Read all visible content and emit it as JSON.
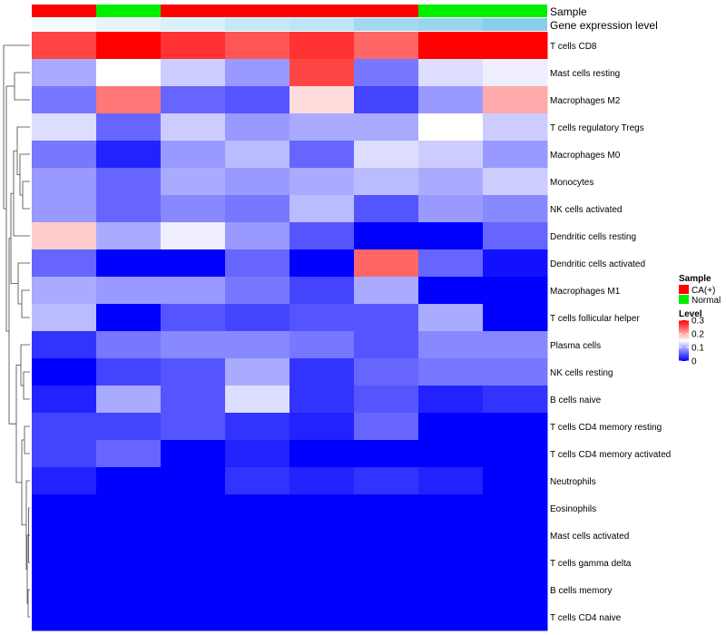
{
  "chart_data": {
    "type": "heatmap",
    "annotation_tracks": [
      {
        "name": "Sample",
        "values": [
          "CA(+)",
          "Normal",
          "CA(+)",
          "CA(+)",
          "CA(+)",
          "CA(+)",
          "Normal",
          "Normal"
        ]
      },
      {
        "name": "Gene expression level",
        "values": [
          0.02,
          0.05,
          0.08,
          0.12,
          0.14,
          0.2,
          0.22,
          0.26
        ]
      }
    ],
    "rows": [
      "T cells CD8",
      "Mast cells resting",
      "Macrophages M2",
      "T cells regulatory  Tregs",
      "Macrophages M0",
      "Monocytes",
      "NK cells activated",
      "Dendritic cells resting",
      "Dendritic cells activated",
      "Macrophages M1",
      "T cells follicular helper",
      "Plasma cells",
      "NK cells resting",
      "B cells naive",
      "T cells CD4 memory resting",
      "T cells CD4 memory activated",
      "Neutrophils",
      "Eosinophils",
      "Mast cells activated",
      "T cells gamma delta",
      "B cells memory",
      "T cells CD4 naive"
    ],
    "values": [
      [
        0.26,
        0.3,
        0.27,
        0.25,
        0.27,
        0.24,
        0.3,
        0.3
      ],
      [
        0.1,
        0.15,
        0.12,
        0.09,
        0.26,
        0.07,
        0.13,
        0.14
      ],
      [
        0.07,
        0.23,
        0.06,
        0.05,
        0.17,
        0.04,
        0.09,
        0.2
      ],
      [
        0.13,
        0.06,
        0.12,
        0.09,
        0.1,
        0.1,
        0.15,
        0.12
      ],
      [
        0.07,
        0.02,
        0.09,
        0.11,
        0.06,
        0.13,
        0.12,
        0.09
      ],
      [
        0.09,
        0.06,
        0.1,
        0.09,
        0.1,
        0.11,
        0.1,
        0.12
      ],
      [
        0.09,
        0.06,
        0.08,
        0.07,
        0.11,
        0.05,
        0.09,
        0.08
      ],
      [
        0.18,
        0.1,
        0.14,
        0.09,
        0.05,
        0.0,
        0.0,
        0.06
      ],
      [
        0.06,
        0.0,
        0.0,
        0.06,
        0.0,
        0.24,
        0.06,
        0.01
      ],
      [
        0.1,
        0.09,
        0.09,
        0.07,
        0.04,
        0.1,
        0.0,
        0.0
      ],
      [
        0.11,
        0.0,
        0.05,
        0.04,
        0.05,
        0.05,
        0.1,
        0.0
      ],
      [
        0.03,
        0.07,
        0.08,
        0.08,
        0.07,
        0.05,
        0.08,
        0.08
      ],
      [
        0.0,
        0.04,
        0.05,
        0.1,
        0.03,
        0.06,
        0.07,
        0.07
      ],
      [
        0.02,
        0.1,
        0.05,
        0.13,
        0.03,
        0.05,
        0.02,
        0.03
      ],
      [
        0.04,
        0.04,
        0.05,
        0.03,
        0.02,
        0.06,
        0.0,
        0.0
      ],
      [
        0.04,
        0.06,
        0.0,
        0.02,
        0.0,
        0.0,
        0.0,
        0.0
      ],
      [
        0.02,
        0.0,
        0.0,
        0.03,
        0.02,
        0.03,
        0.02,
        0.0
      ],
      [
        0.0,
        0.0,
        0.0,
        0.0,
        0.0,
        0.0,
        0.0,
        0.0
      ],
      [
        0.0,
        0.0,
        0.0,
        0.0,
        0.0,
        0.0,
        0.0,
        0.0
      ],
      [
        0.0,
        0.0,
        0.0,
        0.0,
        0.0,
        0.0,
        0.0,
        0.0
      ],
      [
        0.0,
        0.0,
        0.0,
        0.0,
        0.0,
        0.0,
        0.0,
        0.0
      ],
      [
        0.0,
        0.0,
        0.0,
        0.0,
        0.0,
        0.0,
        0.0,
        0.0
      ]
    ],
    "value_range": [
      0,
      0.3
    ],
    "color_scale": {
      "low": "#0000ff",
      "mid": "#ffffff",
      "high": "#ff0000",
      "mid_value": 0.15
    },
    "legend": {
      "sample_title": "Sample",
      "sample_items": [
        {
          "label": "CA(+)",
          "color": "#ff0000"
        },
        {
          "label": "Normal",
          "color": "#00ee00"
        }
      ],
      "level_title": "Level",
      "level_ticks": [
        0.3,
        0.2,
        0.1,
        0
      ],
      "level_tick_labels": [
        "0.3",
        "0.2",
        "0.1",
        "0"
      ]
    },
    "annotation_colors": {
      "expression_low": "#f3fbfe",
      "expression_high": "#87ceeb"
    },
    "dendrogram": "row clustering tree on left side"
  }
}
